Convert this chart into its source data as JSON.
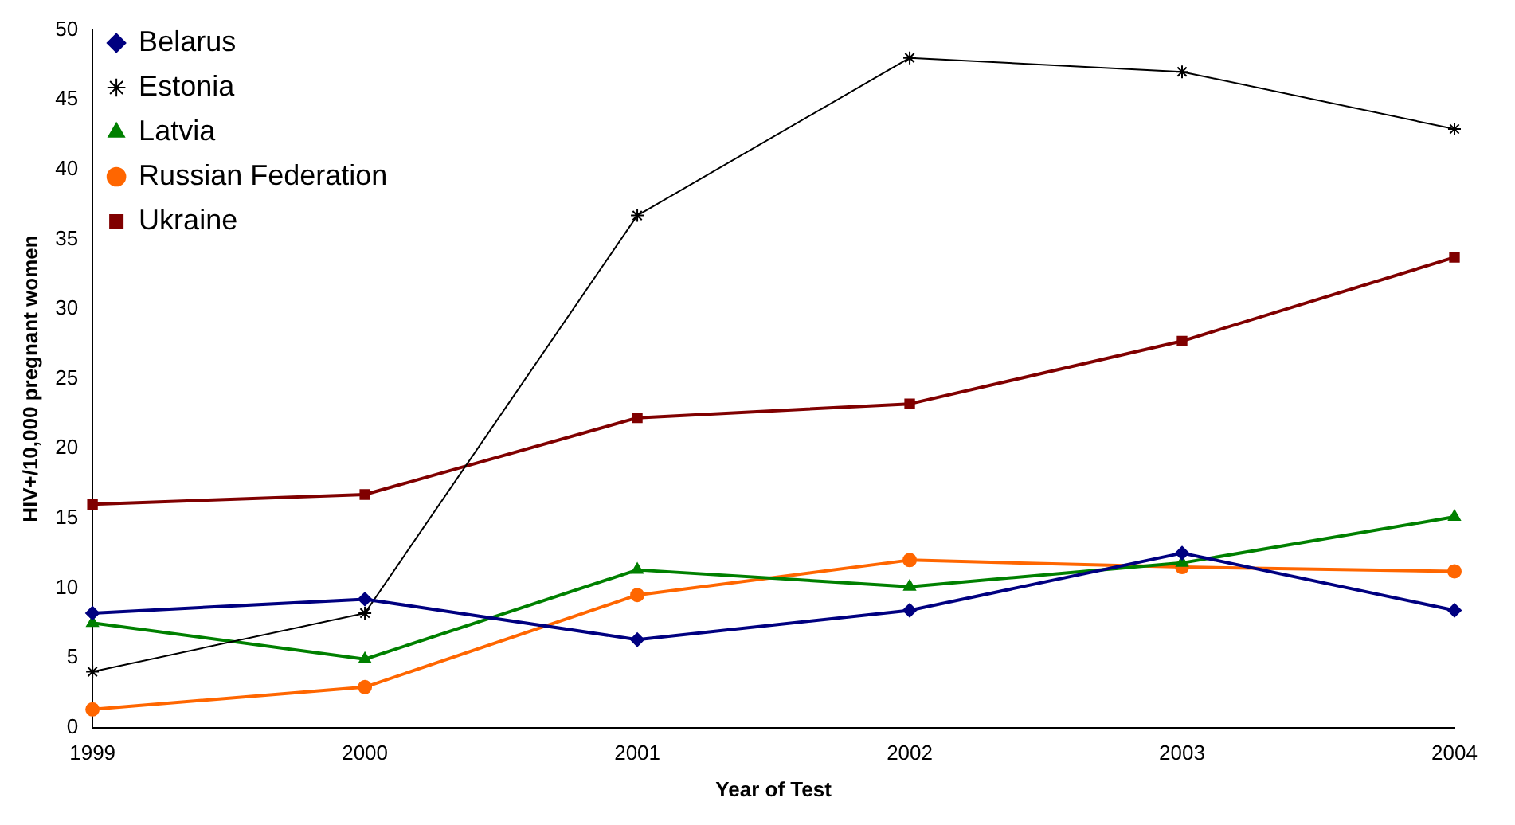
{
  "chart_data": {
    "type": "line",
    "xlabel": "Year of Test",
    "ylabel": "HIV+/10,000 pregnant women",
    "categories": [
      "1999",
      "2000",
      "2001",
      "2002",
      "2003",
      "2004"
    ],
    "series": [
      {
        "name": "Belarus",
        "color": "#000080",
        "marker": "diamond",
        "values": [
          8.2,
          9.2,
          6.3,
          8.4,
          12.5,
          8.4
        ]
      },
      {
        "name": "Estonia",
        "color": "#000000",
        "marker": "cross",
        "values": [
          4.0,
          8.2,
          36.7,
          48.0,
          47.0,
          42.9
        ]
      },
      {
        "name": "Latvia",
        "color": "#008000",
        "marker": "triangle",
        "values": [
          7.5,
          4.9,
          11.3,
          10.1,
          11.8,
          15.1
        ]
      },
      {
        "name": "Russian Federation",
        "color": "#ff6600",
        "marker": "circle",
        "values": [
          1.3,
          2.9,
          9.5,
          12.0,
          11.5,
          11.2
        ]
      },
      {
        "name": "Ukraine",
        "color": "#800000",
        "marker": "square",
        "values": [
          16.0,
          16.7,
          22.2,
          23.2,
          27.7,
          33.7
        ]
      }
    ],
    "ylim": [
      0,
      50
    ],
    "yticks": [
      0,
      5,
      10,
      15,
      20,
      25,
      30,
      35,
      40,
      45,
      50
    ],
    "grid": false,
    "legend": "top left",
    "line_style": "solid"
  }
}
